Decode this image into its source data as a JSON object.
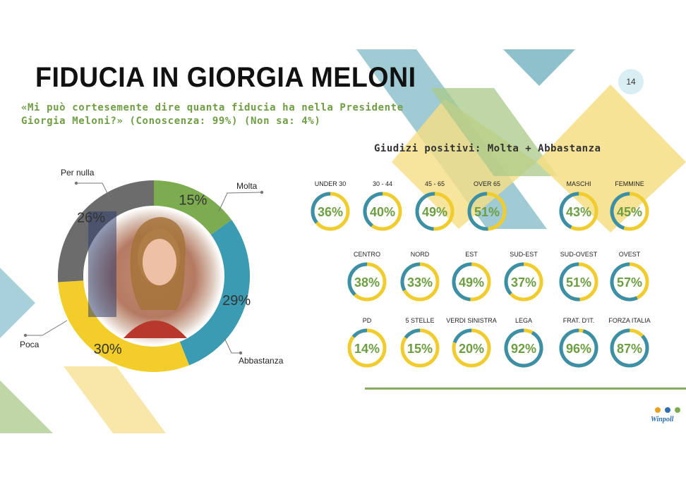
{
  "header": {
    "title": "FIDUCIA IN GIORGIA MELONI",
    "subtitle": "«Mi può cortesemente dire quanta fiducia ha nella Presidente Giorgia Meloni?» (Conoscenza: 99%) (Non sa: 4%)",
    "page_number": "14"
  },
  "colors": {
    "molta": "#7cac4f",
    "abbastanza": "#3b9bb2",
    "poca": "#f3cd2a",
    "per_nulla": "#6c6c6c",
    "gauge_value": "#3b8fa6",
    "gauge_rest": "#f1cc2e",
    "percent_text": "#6d9e42"
  },
  "chart_data": [
    {
      "type": "pie",
      "variant": "donut",
      "categories": [
        "Molta",
        "Abbastanza",
        "Poca",
        "Per nulla"
      ],
      "values": [
        15,
        29,
        30,
        26
      ],
      "labels": [
        "15%",
        "29%",
        "30%",
        "26%"
      ],
      "center_image": "portrait"
    },
    {
      "type": "pie",
      "variant": "gauge-grid",
      "title": "Giudizi positivi: Molta + Abbastanza",
      "rows": [
        {
          "categories": [
            "UNDER 30",
            "30 - 44",
            "45 - 65",
            "OVER 65",
            "MASCHI",
            "FEMMINE"
          ],
          "values": [
            36,
            40,
            49,
            51,
            43,
            45
          ],
          "labels": [
            "36%",
            "40%",
            "49%",
            "51%",
            "43%",
            "45%"
          ]
        },
        {
          "categories": [
            "CENTRO",
            "NORD",
            "EST",
            "SUD-EST",
            "SUD-OVEST",
            "OVEST"
          ],
          "values": [
            38,
            33,
            49,
            37,
            51,
            57
          ],
          "labels": [
            "38%",
            "33%",
            "49%",
            "37%",
            "51%",
            "57%"
          ]
        },
        {
          "categories": [
            "PD",
            "5 STELLE",
            "VERDI SINISTRA",
            "LEGA",
            "FRAT. D'IT.",
            "FORZA ITALIA"
          ],
          "values": [
            14,
            15,
            20,
            92,
            96,
            87
          ],
          "labels": [
            "14%",
            "15%",
            "20%",
            "92%",
            "96%",
            "87%"
          ]
        }
      ]
    }
  ],
  "logo": {
    "text": "Winpoll"
  }
}
